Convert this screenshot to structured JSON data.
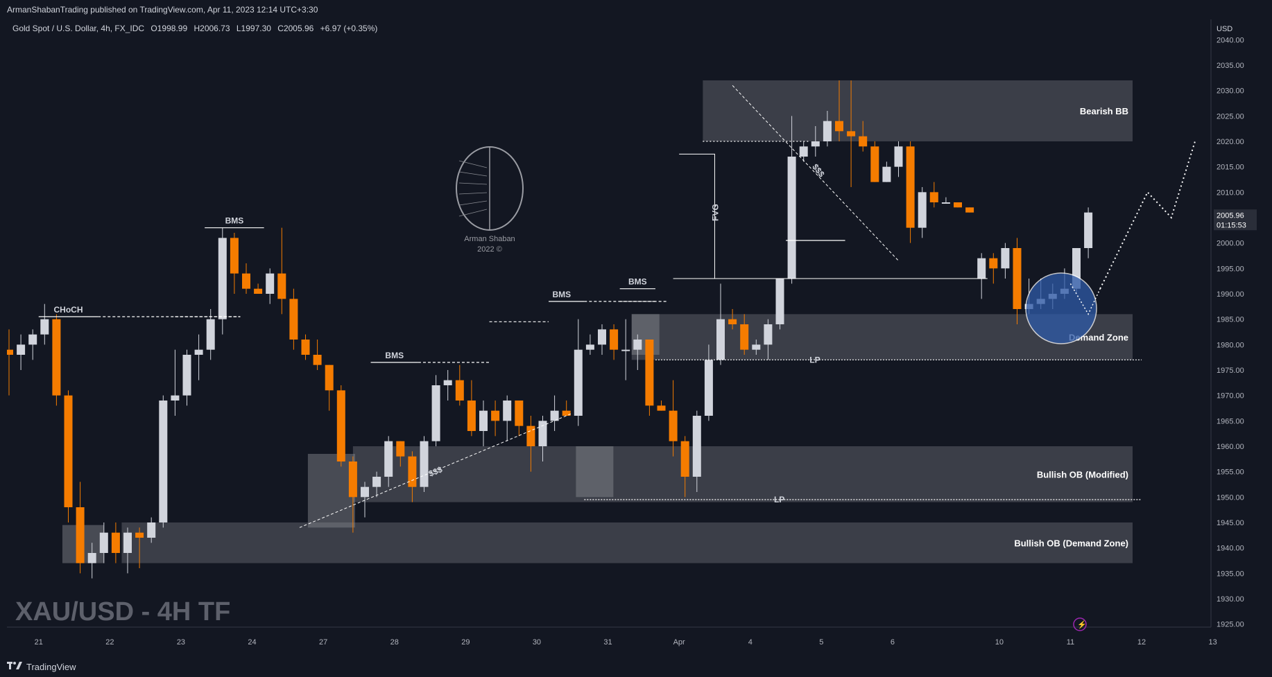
{
  "header": {
    "published_line": "ArmanShabanTrading published on TradingView.com, Apr 11, 2023 12:14 UTC+3:30"
  },
  "symbol_line": {
    "instrument": "Gold Spot / U.S. Dollar, 4h, FX_IDC",
    "open": "O1998.99",
    "high": "H2006.73",
    "low": "L1997.30",
    "close": "C2005.96",
    "change": "+6.97 (+0.35%)"
  },
  "watermark": {
    "line1": "Arman Shaban",
    "line2": "2022 ©"
  },
  "big_title": "XAU/USD - 4H TF",
  "footer": {
    "brand": "TradingView",
    "logo_icon": "tradingview-logo-icon"
  },
  "price_label": {
    "price": "2005.96",
    "countdown": "01:15:53"
  },
  "colors": {
    "background": "#131722",
    "bull_candle": "#d1d4dc",
    "bear_candle": "#f57c00",
    "zone_fill": "#4a4c55",
    "demand_circle": "#2e5aa8"
  },
  "chart_data": {
    "type": "candlestick",
    "axis_currency": "USD",
    "y_ticks": [
      "1925.00",
      "1930.00",
      "1935.00",
      "1940.00",
      "1945.00",
      "1950.00",
      "1955.00",
      "1960.00",
      "1965.00",
      "1970.00",
      "1975.00",
      "1980.00",
      "1985.00",
      "1990.00",
      "1995.00",
      "2000.00",
      "2005.00",
      "2010.00",
      "2015.00",
      "2020.00",
      "2025.00",
      "2030.00",
      "2035.00",
      "2040.00"
    ],
    "ylim": [
      1924,
      2041
    ],
    "x_tick_labels": [
      {
        "label": "21",
        "bar": 2.5
      },
      {
        "label": "22",
        "bar": 8.5
      },
      {
        "label": "23",
        "bar": 14.5
      },
      {
        "label": "24",
        "bar": 20.5
      },
      {
        "label": "27",
        "bar": 26.5
      },
      {
        "label": "28",
        "bar": 32.5
      },
      {
        "label": "29",
        "bar": 38.5
      },
      {
        "label": "30",
        "bar": 44.5
      },
      {
        "label": "31",
        "bar": 50.5
      },
      {
        "label": "Apr",
        "bar": 56.5
      },
      {
        "label": "4",
        "bar": 62.5
      },
      {
        "label": "5",
        "bar": 68.5
      },
      {
        "label": "6",
        "bar": 74.5
      },
      {
        "label": "10",
        "bar": 83.5
      },
      {
        "label": "11",
        "bar": 89.5
      },
      {
        "label": "12",
        "bar": 95.5
      },
      {
        "label": "13",
        "bar": 101.5
      }
    ],
    "candles": [
      {
        "o": 1979,
        "h": 1983,
        "l": 1970,
        "c": 1978
      },
      {
        "o": 1978,
        "h": 1982,
        "l": 1975,
        "c": 1980
      },
      {
        "o": 1980,
        "h": 1983,
        "l": 1977,
        "c": 1982
      },
      {
        "o": 1982,
        "h": 1988,
        "l": 1980,
        "c": 1985
      },
      {
        "o": 1985,
        "h": 1986,
        "l": 1968,
        "c": 1970
      },
      {
        "o": 1970,
        "h": 1971,
        "l": 1945,
        "c": 1948
      },
      {
        "o": 1948,
        "h": 1953,
        "l": 1935,
        "c": 1937
      },
      {
        "o": 1937,
        "h": 1941,
        "l": 1934,
        "c": 1939
      },
      {
        "o": 1939,
        "h": 1945,
        "l": 1937,
        "c": 1943
      },
      {
        "o": 1943,
        "h": 1945,
        "l": 1937,
        "c": 1939
      },
      {
        "o": 1939,
        "h": 1944,
        "l": 1935,
        "c": 1943
      },
      {
        "o": 1943,
        "h": 1944,
        "l": 1936,
        "c": 1942
      },
      {
        "o": 1942,
        "h": 1946,
        "l": 1941,
        "c": 1945
      },
      {
        "o": 1945,
        "h": 1970,
        "l": 1944,
        "c": 1969
      },
      {
        "o": 1969,
        "h": 1979,
        "l": 1966,
        "c": 1970
      },
      {
        "o": 1970,
        "h": 1979,
        "l": 1968,
        "c": 1978
      },
      {
        "o": 1978,
        "h": 1982,
        "l": 1973,
        "c": 1979
      },
      {
        "o": 1979,
        "h": 1987,
        "l": 1977,
        "c": 1985
      },
      {
        "o": 1985,
        "h": 2003,
        "l": 1982,
        "c": 2001
      },
      {
        "o": 2001,
        "h": 2002,
        "l": 1990,
        "c": 1994
      },
      {
        "o": 1994,
        "h": 1996,
        "l": 1990,
        "c": 1991
      },
      {
        "o": 1991,
        "h": 1992,
        "l": 1990,
        "c": 1990
      },
      {
        "o": 1990,
        "h": 1995,
        "l": 1988,
        "c": 1994
      },
      {
        "o": 1994,
        "h": 2003,
        "l": 1986,
        "c": 1989
      },
      {
        "o": 1989,
        "h": 1991,
        "l": 1979,
        "c": 1981
      },
      {
        "o": 1981,
        "h": 1982,
        "l": 1977,
        "c": 1978
      },
      {
        "o": 1978,
        "h": 1981,
        "l": 1975,
        "c": 1976
      },
      {
        "o": 1976,
        "h": 1976,
        "l": 1967,
        "c": 1971
      },
      {
        "o": 1971,
        "h": 1972,
        "l": 1956,
        "c": 1957
      },
      {
        "o": 1957,
        "h": 1958,
        "l": 1943,
        "c": 1950
      },
      {
        "o": 1950,
        "h": 1953,
        "l": 1946,
        "c": 1952
      },
      {
        "o": 1952,
        "h": 1955,
        "l": 1950,
        "c": 1954
      },
      {
        "o": 1954,
        "h": 1962,
        "l": 1952,
        "c": 1961
      },
      {
        "o": 1961,
        "h": 1961,
        "l": 1956,
        "c": 1958
      },
      {
        "o": 1958,
        "h": 1959,
        "l": 1949,
        "c": 1952
      },
      {
        "o": 1952,
        "h": 1962,
        "l": 1951,
        "c": 1961
      },
      {
        "o": 1961,
        "h": 1974,
        "l": 1960,
        "c": 1972
      },
      {
        "o": 1972,
        "h": 1975,
        "l": 1969,
        "c": 1973
      },
      {
        "o": 1973,
        "h": 1976,
        "l": 1968,
        "c": 1969
      },
      {
        "o": 1969,
        "h": 1973,
        "l": 1962,
        "c": 1963
      },
      {
        "o": 1963,
        "h": 1969,
        "l": 1960,
        "c": 1967
      },
      {
        "o": 1967,
        "h": 1969,
        "l": 1962,
        "c": 1965
      },
      {
        "o": 1965,
        "h": 1970,
        "l": 1961,
        "c": 1969
      },
      {
        "o": 1969,
        "h": 1969,
        "l": 1962,
        "c": 1964
      },
      {
        "o": 1964,
        "h": 1966,
        "l": 1955,
        "c": 1960
      },
      {
        "o": 1960,
        "h": 1966,
        "l": 1957,
        "c": 1965
      },
      {
        "o": 1965,
        "h": 1970,
        "l": 1963,
        "c": 1967
      },
      {
        "o": 1967,
        "h": 1969,
        "l": 1966,
        "c": 1966
      },
      {
        "o": 1966,
        "h": 1985,
        "l": 1964,
        "c": 1979
      },
      {
        "o": 1979,
        "h": 1982,
        "l": 1978,
        "c": 1980
      },
      {
        "o": 1980,
        "h": 1984,
        "l": 1978,
        "c": 1983
      },
      {
        "o": 1983,
        "h": 1984,
        "l": 1977,
        "c": 1979
      },
      {
        "o": 1979,
        "h": 1985,
        "l": 1973,
        "c": 1979
      },
      {
        "o": 1979,
        "h": 1982,
        "l": 1975,
        "c": 1981
      },
      {
        "o": 1981,
        "h": 1981,
        "l": 1966,
        "c": 1968
      },
      {
        "o": 1968,
        "h": 1969,
        "l": 1967,
        "c": 1967
      },
      {
        "o": 1967,
        "h": 1973,
        "l": 1958,
        "c": 1961
      },
      {
        "o": 1961,
        "h": 1962,
        "l": 1950,
        "c": 1954
      },
      {
        "o": 1954,
        "h": 1967,
        "l": 1951,
        "c": 1966
      },
      {
        "o": 1966,
        "h": 1980,
        "l": 1965,
        "c": 1977
      },
      {
        "o": 1977,
        "h": 1992,
        "l": 1976,
        "c": 1985
      },
      {
        "o": 1985,
        "h": 1987,
        "l": 1983,
        "c": 1984
      },
      {
        "o": 1984,
        "h": 1986,
        "l": 1978,
        "c": 1979
      },
      {
        "o": 1979,
        "h": 1981,
        "l": 1978,
        "c": 1980
      },
      {
        "o": 1980,
        "h": 1985,
        "l": 1977,
        "c": 1984
      },
      {
        "o": 1984,
        "h": 1993,
        "l": 1983,
        "c": 1993
      },
      {
        "o": 1993,
        "h": 2025,
        "l": 1992,
        "c": 2017
      },
      {
        "o": 2017,
        "h": 2020,
        "l": 2016,
        "c": 2019
      },
      {
        "o": 2019,
        "h": 2023,
        "l": 2017,
        "c": 2020
      },
      {
        "o": 2020,
        "h": 2026,
        "l": 2019,
        "c": 2024
      },
      {
        "o": 2024,
        "h": 2032,
        "l": 2020,
        "c": 2022
      },
      {
        "o": 2022,
        "h": 2032,
        "l": 2011,
        "c": 2021
      },
      {
        "o": 2021,
        "h": 2024,
        "l": 2018,
        "c": 2019
      },
      {
        "o": 2019,
        "h": 2020,
        "l": 2012,
        "c": 2012
      },
      {
        "o": 2012,
        "h": 2016,
        "l": 2012,
        "c": 2015
      },
      {
        "o": 2015,
        "h": 2020,
        "l": 2013,
        "c": 2019
      },
      {
        "o": 2019,
        "h": 2020,
        "l": 2000,
        "c": 2003
      },
      {
        "o": 2003,
        "h": 2011,
        "l": 2001,
        "c": 2010
      },
      {
        "o": 2010,
        "h": 2012,
        "l": 2007,
        "c": 2008
      },
      {
        "o": 2008,
        "h": 2009,
        "l": 2008,
        "c": 2008
      },
      {
        "o": 2008,
        "h": 2008,
        "l": 2007,
        "c": 2007
      },
      {
        "o": 2007,
        "h": 2007,
        "l": 2006,
        "c": 2006
      },
      {
        "o": 1993,
        "h": 1998,
        "l": 1989,
        "c": 1997
      },
      {
        "o": 1997,
        "h": 1998,
        "l": 1992,
        "c": 1995
      },
      {
        "o": 1995,
        "h": 2000,
        "l": 1993,
        "c": 1999
      },
      {
        "o": 1999,
        "h": 2001,
        "l": 1984,
        "c": 1987
      },
      {
        "o": 1987,
        "h": 1993,
        "l": 1986,
        "c": 1988
      },
      {
        "o": 1988,
        "h": 1993,
        "l": 1987,
        "c": 1989
      },
      {
        "o": 1989,
        "h": 1992,
        "l": 1987,
        "c": 1990
      },
      {
        "o": 1990,
        "h": 1995,
        "l": 1989,
        "c": 1991
      },
      {
        "o": 1991,
        "h": 1999,
        "l": 1990,
        "c": 1999
      },
      {
        "o": 1999,
        "h": 2007,
        "l": 1997,
        "c": 2006
      }
    ],
    "annotations": [
      {
        "text": "CHoCH",
        "level": 1985.5
      },
      {
        "text": "BMS",
        "level": 2003.0
      },
      {
        "text": "BMS",
        "level": 1976.5
      },
      {
        "text": "BMS",
        "level": 1988.5
      },
      {
        "text": "BMS",
        "level": 1991.0
      },
      {
        "text": "FVG"
      },
      {
        "text": "$$$"
      },
      {
        "text": "$$$"
      },
      {
        "text": "LP",
        "level": 1977.0
      },
      {
        "text": "LP",
        "level": 1949.5
      }
    ],
    "zones": [
      {
        "label": "Bearish BB",
        "low": 2020,
        "high": 2032
      },
      {
        "label": "Demand Zone",
        "low": 1977,
        "high": 1986
      },
      {
        "label": "Bullish OB (Modified)",
        "low": 1949,
        "high": 1960
      },
      {
        "label": "Bullish OB (Demand Zone)",
        "low": 1937,
        "high": 1945
      }
    ],
    "projection_path": [
      {
        "bar": 92,
        "price": 1991
      },
      {
        "bar": 96,
        "price": 2010
      },
      {
        "bar": 98,
        "price": 2005
      },
      {
        "bar": 100,
        "price": 2020
      }
    ]
  }
}
